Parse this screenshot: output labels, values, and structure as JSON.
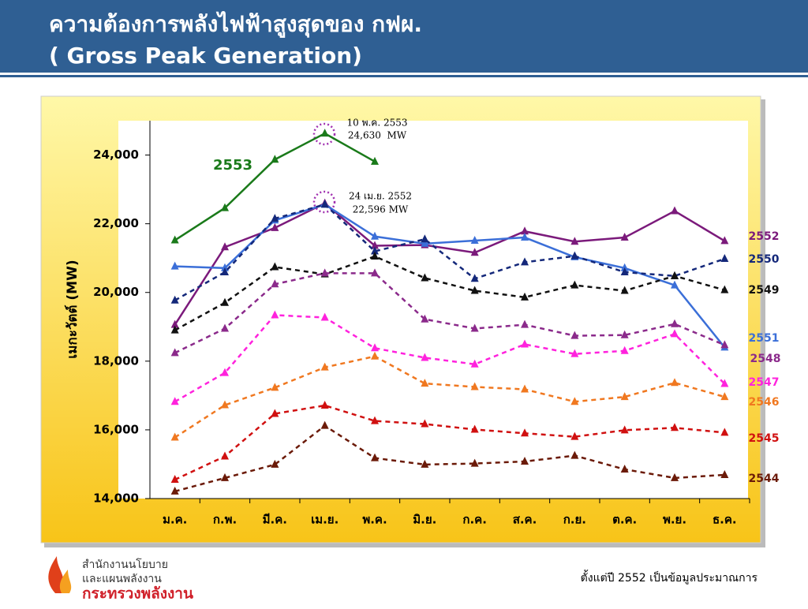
{
  "header": {
    "title_line1": "ความต้องการพลังไฟฟ้าสูงสุดของ กฟผ.",
    "title_line2": "( Gross Peak Generation)"
  },
  "chart_data": {
    "type": "line",
    "ylabel": "เมกะวัตต์ (MW)",
    "categories": [
      "ม.ค.",
      "ก.พ.",
      "มี.ค.",
      "เม.ย.",
      "พ.ค.",
      "มิ.ย.",
      "ก.ค.",
      "ส.ค.",
      "ก.ย.",
      "ต.ค.",
      "พ.ย.",
      "ธ.ค."
    ],
    "ylim": [
      14000,
      25000
    ],
    "yticks": [
      {
        "value": 14000,
        "label": "14,000"
      },
      {
        "value": 16000,
        "label": "16,000"
      },
      {
        "value": 18000,
        "label": "18,000"
      },
      {
        "value": 20000,
        "label": "20,000"
      },
      {
        "value": 22000,
        "label": "22,000"
      },
      {
        "value": 24000,
        "label": "24,000"
      }
    ],
    "series": [
      {
        "name": "2553",
        "color": "#1a7a1a",
        "style": "solid",
        "values": [
          21520,
          22460,
          23870,
          24630,
          23810,
          null,
          null,
          null,
          null,
          null,
          null,
          null
        ]
      },
      {
        "name": "2552",
        "color": "#7b1a7b",
        "style": "solid",
        "values": [
          19060,
          21320,
          21880,
          22596,
          21360,
          21380,
          21160,
          21780,
          21480,
          21600,
          22370,
          21500
        ]
      },
      {
        "name": "2551",
        "color": "#3b6fd8",
        "style": "solid",
        "values": [
          20760,
          20710,
          22100,
          22560,
          21630,
          21420,
          21510,
          21600,
          21030,
          20710,
          20210,
          18400
        ]
      },
      {
        "name": "2550",
        "color": "#14287a",
        "style": "dashed",
        "values": [
          19770,
          20590,
          22150,
          22560,
          21200,
          21550,
          20400,
          20880,
          21060,
          20590,
          20480,
          20980
        ]
      },
      {
        "name": "2549",
        "color": "#111111",
        "style": "dashed",
        "values": [
          18900,
          19700,
          20740,
          20530,
          21050,
          20420,
          20050,
          19860,
          20210,
          20050,
          20480,
          20070
        ]
      },
      {
        "name": "2548",
        "color": "#8b2a8b",
        "style": "dashed",
        "values": [
          18240,
          18950,
          20240,
          20560,
          20560,
          19220,
          18950,
          19060,
          18740,
          18760,
          19080,
          18470
        ]
      },
      {
        "name": "2547",
        "color": "#ff22dd",
        "style": "dashed",
        "values": [
          16820,
          17660,
          19340,
          19270,
          18380,
          18100,
          17910,
          18490,
          18210,
          18300,
          18790,
          17340
        ]
      },
      {
        "name": "2546",
        "color": "#f07820",
        "style": "dashed",
        "values": [
          15780,
          16720,
          17230,
          17820,
          18140,
          17350,
          17250,
          17180,
          16820,
          16960,
          17370,
          16960
        ]
      },
      {
        "name": "2545",
        "color": "#d01010",
        "style": "dashed",
        "values": [
          14550,
          15230,
          16470,
          16710,
          16260,
          16170,
          16010,
          15900,
          15800,
          15990,
          16060,
          15920
        ]
      },
      {
        "name": "2544",
        "color": "#6b1a08",
        "style": "dashed",
        "values": [
          14210,
          14600,
          14990,
          16120,
          15180,
          14990,
          15020,
          15080,
          15250,
          14850,
          14600,
          14690
        ]
      }
    ],
    "annotations": [
      "10 พ.ค. 2553",
      "24,630  MW",
      "24 เม.ย. 2552",
      "22,596 MW"
    ],
    "note": "ตั้งแต่ปี 2552 เป็นข้อมูลประมาณการ"
  },
  "logo": {
    "line1": "สำนักงานนโยบาย",
    "line2": "และแผนพลังงาน",
    "line3": "กระทรวงพลังงาน"
  }
}
